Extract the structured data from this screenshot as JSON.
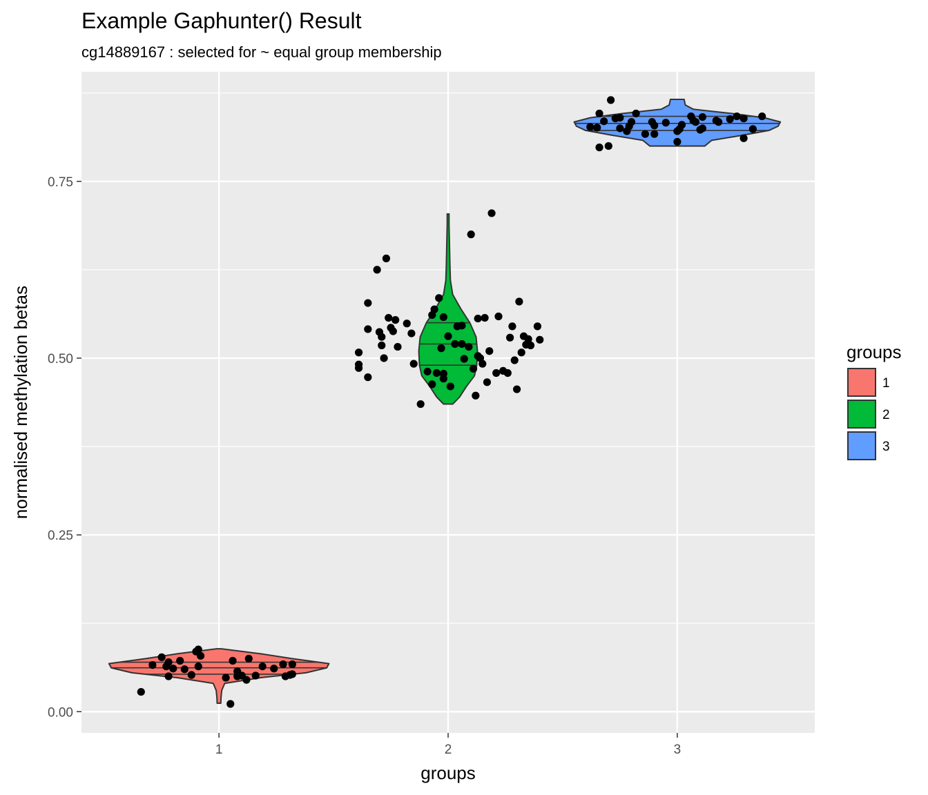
{
  "chart_data": {
    "type": "violin",
    "title": "Example Gaphunter() Result",
    "subtitle": "cg14889167 : selected for ~ equal group membership",
    "xlabel": "groups",
    "ylabel": "normalised methylation betas",
    "categories": [
      "1",
      "2",
      "3"
    ],
    "ylim": [
      -0.03,
      0.905
    ],
    "yticks": [
      {
        "value": 0.0,
        "label": "0.00"
      },
      {
        "value": 0.25,
        "label": "0.25"
      },
      {
        "value": 0.5,
        "label": "0.50"
      },
      {
        "value": 0.75,
        "label": "0.75"
      }
    ],
    "grid": true,
    "legend": {
      "title": "groups",
      "position": "right",
      "items": [
        {
          "label": "1",
          "color": "#F8766D"
        },
        {
          "label": "2",
          "color": "#00BA38"
        },
        {
          "label": "3",
          "color": "#619CFF"
        }
      ]
    },
    "violins": [
      {
        "group": "1",
        "color": "#F8766D",
        "quantiles": [
          0.053,
          0.062,
          0.07
        ],
        "profile": [
          [
            0.012,
            0.008
          ],
          [
            0.02,
            0.009
          ],
          [
            0.03,
            0.012
          ],
          [
            0.04,
            0.025
          ],
          [
            0.048,
            0.18
          ],
          [
            0.055,
            0.38
          ],
          [
            0.062,
            0.47
          ],
          [
            0.068,
            0.48
          ],
          [
            0.075,
            0.32
          ],
          [
            0.082,
            0.18
          ],
          [
            0.089,
            0.01
          ]
        ],
        "points": [
          [
            -0.34,
            0.028
          ],
          [
            -0.29,
            0.066
          ],
          [
            -0.25,
            0.077
          ],
          [
            -0.23,
            0.064
          ],
          [
            -0.22,
            0.07
          ],
          [
            -0.22,
            0.05
          ],
          [
            -0.2,
            0.061
          ],
          [
            -0.17,
            0.072
          ],
          [
            -0.15,
            0.06
          ],
          [
            -0.12,
            0.052
          ],
          [
            -0.1,
            0.085
          ],
          [
            -0.09,
            0.088
          ],
          [
            -0.08,
            0.079
          ],
          [
            -0.09,
            0.064
          ],
          [
            0.03,
            0.048
          ],
          [
            0.06,
            0.072
          ],
          [
            0.08,
            0.057
          ],
          [
            0.08,
            0.05
          ],
          [
            0.1,
            0.051
          ],
          [
            0.12,
            0.045
          ],
          [
            0.13,
            0.075
          ],
          [
            0.16,
            0.051
          ],
          [
            0.19,
            0.064
          ],
          [
            0.24,
            0.061
          ],
          [
            0.28,
            0.067
          ],
          [
            0.29,
            0.05
          ],
          [
            0.31,
            0.052
          ],
          [
            0.32,
            0.053
          ],
          [
            0.32,
            0.067
          ],
          [
            0.05,
            0.011
          ]
        ]
      },
      {
        "group": "2",
        "color": "#00BA38",
        "quantiles": [
          0.49,
          0.52,
          0.55
        ],
        "profile": [
          [
            0.435,
            0.02
          ],
          [
            0.445,
            0.05
          ],
          [
            0.46,
            0.08
          ],
          [
            0.475,
            0.115
          ],
          [
            0.49,
            0.125
          ],
          [
            0.51,
            0.128
          ],
          [
            0.53,
            0.122
          ],
          [
            0.55,
            0.095
          ],
          [
            0.57,
            0.055
          ],
          [
            0.59,
            0.02
          ],
          [
            0.61,
            0.01
          ],
          [
            0.63,
            0.008
          ],
          [
            0.66,
            0.006
          ],
          [
            0.69,
            0.004
          ],
          [
            0.704,
            0.004
          ]
        ],
        "points": [
          [
            -0.39,
            0.486
          ],
          [
            -0.39,
            0.491
          ],
          [
            -0.39,
            0.508
          ],
          [
            -0.35,
            0.473
          ],
          [
            -0.35,
            0.578
          ],
          [
            -0.35,
            0.541
          ],
          [
            -0.31,
            0.625
          ],
          [
            -0.3,
            0.537
          ],
          [
            -0.29,
            0.518
          ],
          [
            -0.29,
            0.53
          ],
          [
            -0.28,
            0.5
          ],
          [
            -0.27,
            0.641
          ],
          [
            -0.26,
            0.557
          ],
          [
            -0.25,
            0.543
          ],
          [
            -0.24,
            0.538
          ],
          [
            -0.23,
            0.554
          ],
          [
            -0.22,
            0.516
          ],
          [
            -0.18,
            0.549
          ],
          [
            -0.16,
            0.535
          ],
          [
            -0.15,
            0.492
          ],
          [
            -0.12,
            0.435
          ],
          [
            -0.09,
            0.481
          ],
          [
            -0.07,
            0.561
          ],
          [
            -0.07,
            0.463
          ],
          [
            -0.06,
            0.569
          ],
          [
            -0.05,
            0.479
          ],
          [
            -0.04,
            0.585
          ],
          [
            -0.03,
            0.514
          ],
          [
            -0.02,
            0.471
          ],
          [
            -0.02,
            0.478
          ],
          [
            -0.02,
            0.558
          ],
          [
            0.0,
            0.531
          ],
          [
            0.01,
            0.46
          ],
          [
            0.03,
            0.52
          ],
          [
            0.04,
            0.545
          ],
          [
            0.06,
            0.546
          ],
          [
            0.06,
            0.52
          ],
          [
            0.07,
            0.499
          ],
          [
            0.09,
            0.516
          ],
          [
            0.1,
            0.675
          ],
          [
            0.11,
            0.485
          ],
          [
            0.12,
            0.447
          ],
          [
            0.13,
            0.503
          ],
          [
            0.13,
            0.556
          ],
          [
            0.14,
            0.5
          ],
          [
            0.15,
            0.492
          ],
          [
            0.16,
            0.557
          ],
          [
            0.17,
            0.466
          ],
          [
            0.18,
            0.51
          ],
          [
            0.19,
            0.705
          ],
          [
            0.21,
            0.479
          ],
          [
            0.22,
            0.559
          ],
          [
            0.24,
            0.482
          ],
          [
            0.26,
            0.479
          ],
          [
            0.27,
            0.529
          ],
          [
            0.28,
            0.545
          ],
          [
            0.29,
            0.497
          ],
          [
            0.3,
            0.456
          ],
          [
            0.31,
            0.58
          ],
          [
            0.32,
            0.508
          ],
          [
            0.33,
            0.531
          ],
          [
            0.34,
            0.519
          ],
          [
            0.35,
            0.527
          ],
          [
            0.36,
            0.518
          ],
          [
            0.39,
            0.545
          ],
          [
            0.4,
            0.526
          ]
        ]
      },
      {
        "group": "3",
        "color": "#619CFF",
        "quantiles": [
          0.822,
          0.832,
          0.842
        ],
        "profile": [
          [
            0.8,
            0.12
          ],
          [
            0.808,
            0.15
          ],
          [
            0.815,
            0.28
          ],
          [
            0.822,
            0.4
          ],
          [
            0.828,
            0.44
          ],
          [
            0.834,
            0.45
          ],
          [
            0.84,
            0.38
          ],
          [
            0.846,
            0.24
          ],
          [
            0.852,
            0.07
          ],
          [
            0.858,
            0.035
          ],
          [
            0.866,
            0.03
          ]
        ],
        "points": [
          [
            -0.38,
            0.827
          ],
          [
            -0.35,
            0.826
          ],
          [
            -0.34,
            0.798
          ],
          [
            -0.34,
            0.846
          ],
          [
            -0.32,
            0.835
          ],
          [
            -0.3,
            0.8
          ],
          [
            -0.29,
            0.865
          ],
          [
            -0.27,
            0.839
          ],
          [
            -0.25,
            0.825
          ],
          [
            -0.25,
            0.84
          ],
          [
            -0.22,
            0.821
          ],
          [
            -0.21,
            0.828
          ],
          [
            -0.2,
            0.834
          ],
          [
            -0.18,
            0.846
          ],
          [
            -0.14,
            0.817
          ],
          [
            -0.11,
            0.834
          ],
          [
            -0.1,
            0.829
          ],
          [
            -0.1,
            0.817
          ],
          [
            -0.05,
            0.833
          ],
          [
            0.0,
            0.821
          ],
          [
            0.0,
            0.806
          ],
          [
            0.01,
            0.824
          ],
          [
            0.02,
            0.83
          ],
          [
            0.06,
            0.842
          ],
          [
            0.07,
            0.836
          ],
          [
            0.08,
            0.834
          ],
          [
            0.1,
            0.823
          ],
          [
            0.11,
            0.825
          ],
          [
            0.11,
            0.841
          ],
          [
            0.17,
            0.836
          ],
          [
            0.18,
            0.834
          ],
          [
            0.23,
            0.838
          ],
          [
            0.26,
            0.842
          ],
          [
            0.29,
            0.839
          ],
          [
            0.29,
            0.811
          ],
          [
            0.33,
            0.824
          ],
          [
            0.37,
            0.842
          ]
        ]
      }
    ]
  }
}
